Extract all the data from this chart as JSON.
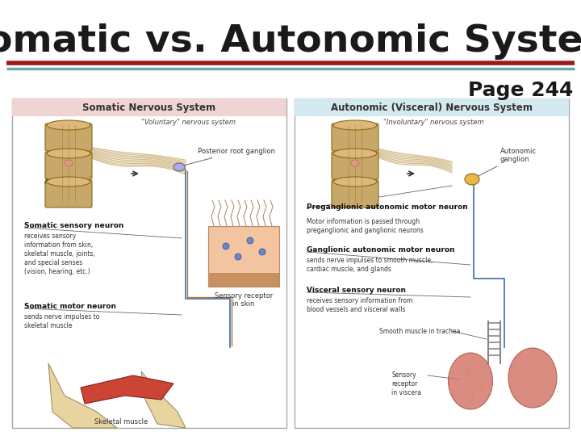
{
  "title": "Somatic vs. Autonomic System",
  "page_text": "Page 244",
  "background_color": "#ffffff",
  "title_color": "#1a1a1a",
  "title_fontsize": 34,
  "page_fontsize": 18,
  "line1_color": "#9B1B1B",
  "line2_color": "#6BAAB0",
  "left_box_color": "#F0D4D4",
  "right_box_color": "#D4E8F0",
  "left_title": "Somatic Nervous System",
  "right_title": "Autonomic (Visceral) Nervous System",
  "left_subtitle": "\"Voluntary\" nervous system",
  "right_subtitle": "\"Involuntary\" nervous system",
  "cord_color": "#C8A86A",
  "cord_edge": "#8B6914",
  "nerve_color": "#D4B87A",
  "skin_color": "#F2C4A0",
  "skin_edge": "#B8896A",
  "muscle_color": "#CC4433",
  "bone_color": "#E8D4A0",
  "lung_color": "#D4786A",
  "blue_nerve": "#3A6EA8",
  "brown_nerve": "#A87840"
}
